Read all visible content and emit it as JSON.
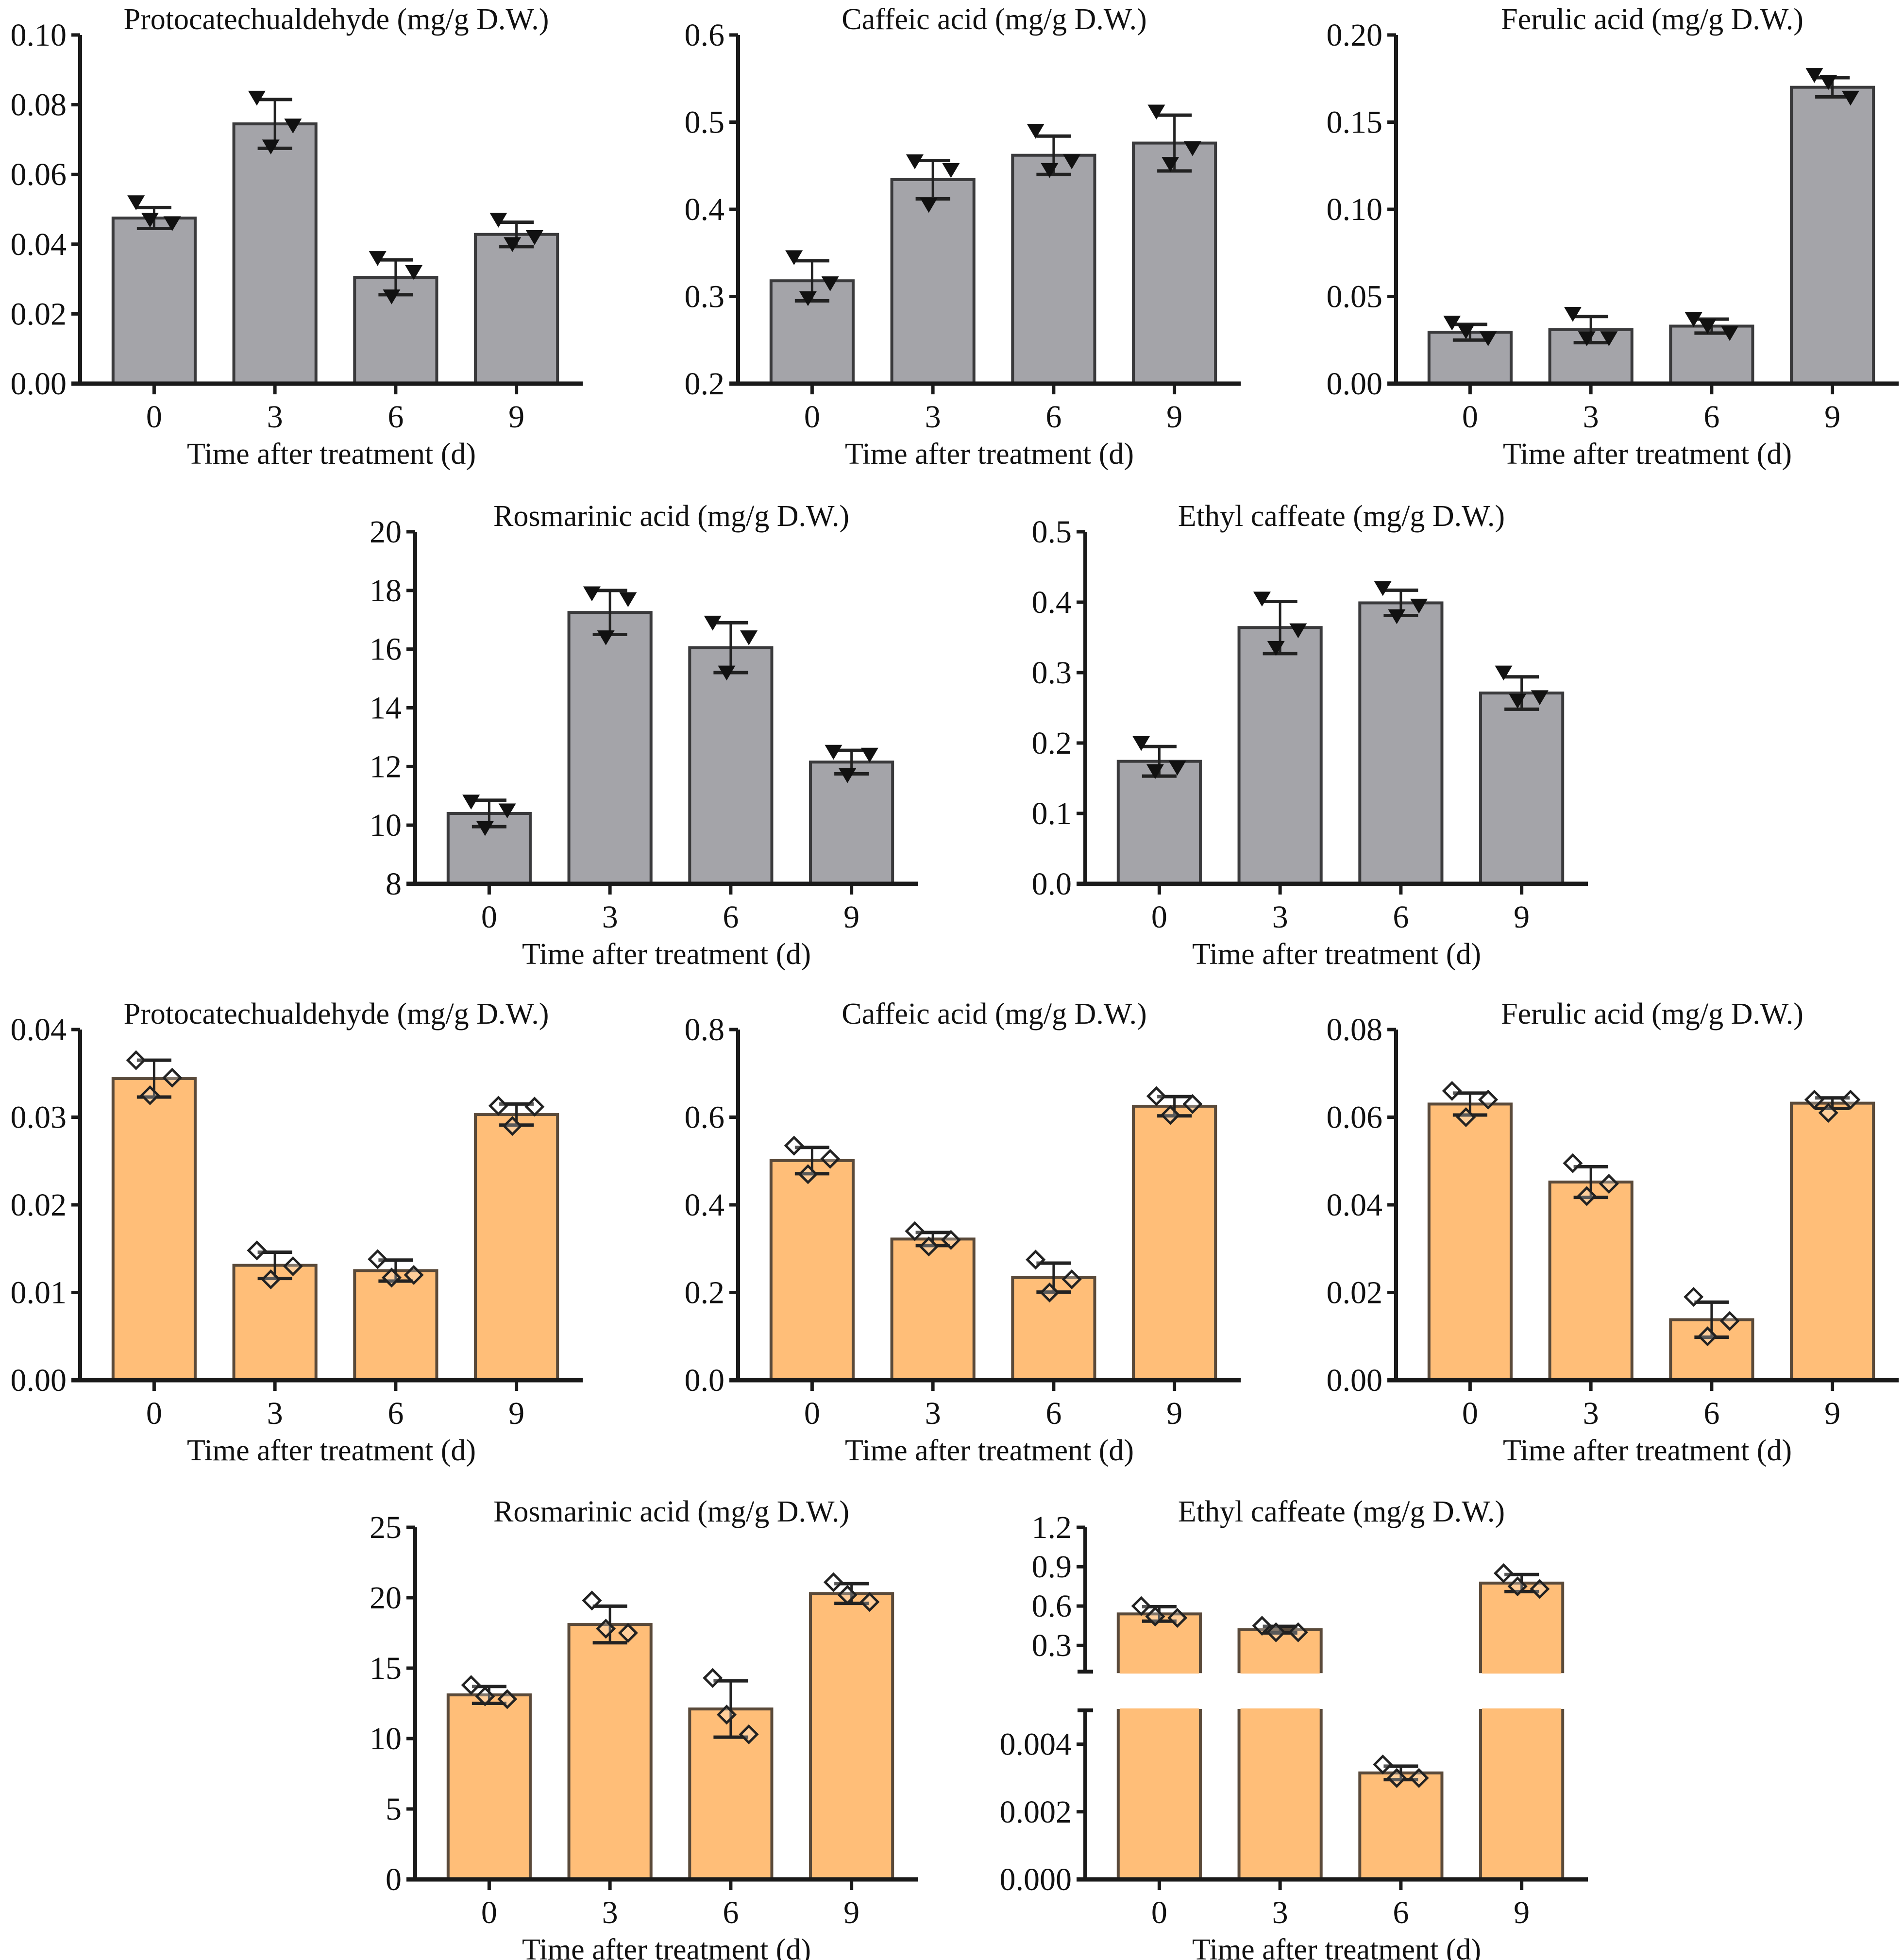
{
  "figure": {
    "colors": {
      "group_a_fill": "#a4a4a9",
      "group_a_edge": "#3a3a3c",
      "group_b_fill": "#ffbe78",
      "group_b_edge": "#5a4a3a",
      "axis": "#1a1a1a",
      "marker_a": "#111111",
      "marker_b_edge": "#222222"
    }
  },
  "chart_data": [
    {
      "type": "bar",
      "group": "A",
      "marker": "filled-down-triangle",
      "title": "Protocatechualdehyde (mg/g D.W.)",
      "xlabel": "Time after treatment (d)",
      "ylabel": "",
      "categories": [
        "0",
        "3",
        "6",
        "9"
      ],
      "values": [
        0.0475,
        0.0745,
        0.0305,
        0.0428
      ],
      "error": [
        0.003,
        0.007,
        0.005,
        0.0035
      ],
      "points": [
        [
          0.052,
          0.046,
          0.047
        ],
        [
          0.082,
          0.074,
          0.068
        ],
        [
          0.036,
          0.032,
          0.025
        ],
        [
          0.047,
          0.042,
          0.04
        ]
      ],
      "ylim": [
        0,
        0.1
      ],
      "yticks": [
        "0.00",
        "0.02",
        "0.04",
        "0.06",
        "0.08",
        "0.10"
      ],
      "ytick_values": [
        0,
        0.02,
        0.04,
        0.06,
        0.08,
        0.1
      ],
      "grid": false
    },
    {
      "type": "bar",
      "group": "A",
      "marker": "filled-down-triangle",
      "title": "Caffeic acid (mg/g D.W.)",
      "xlabel": "Time after treatment (d)",
      "ylabel": "",
      "categories": [
        "0",
        "3",
        "6",
        "9"
      ],
      "values": [
        0.318,
        0.434,
        0.462,
        0.476
      ],
      "error": [
        0.023,
        0.022,
        0.022,
        0.032
      ],
      "points": [
        [
          0.345,
          0.315,
          0.298
        ],
        [
          0.455,
          0.445,
          0.405
        ],
        [
          0.49,
          0.455,
          0.445
        ],
        [
          0.512,
          0.47,
          0.452
        ]
      ],
      "ylim": [
        0.2,
        0.6
      ],
      "yticks": [
        "0.2",
        "0.3",
        "0.4",
        "0.5",
        "0.6"
      ],
      "ytick_values": [
        0.2,
        0.3,
        0.4,
        0.5,
        0.6
      ],
      "grid": false
    },
    {
      "type": "bar",
      "group": "A",
      "marker": "filled-down-triangle",
      "title": "Ferulic acid (mg/g D.W.)",
      "xlabel": "Time after treatment (d)",
      "ylabel": "",
      "categories": [
        "0",
        "3",
        "6",
        "9"
      ],
      "values": [
        0.0295,
        0.031,
        0.033,
        0.17
      ],
      "error": [
        0.0045,
        0.0075,
        0.004,
        0.0055
      ],
      "points": [
        [
          0.035,
          0.026,
          0.03
        ],
        [
          0.04,
          0.026,
          0.026
        ],
        [
          0.037,
          0.029,
          0.033
        ],
        [
          0.177,
          0.164,
          0.173
        ]
      ],
      "ylim": [
        0,
        0.2
      ],
      "yticks": [
        "0.00",
        "0.05",
        "0.10",
        "0.15",
        "0.20"
      ],
      "ytick_values": [
        0,
        0.05,
        0.1,
        0.15,
        0.2
      ],
      "grid": false
    },
    {
      "type": "bar",
      "group": "A",
      "marker": "filled-down-triangle",
      "title": "Rosmarinic acid (mg/g D.W.)",
      "xlabel": "Time after treatment (d)",
      "ylabel": "",
      "categories": [
        "0",
        "3",
        "6",
        "9"
      ],
      "values": [
        10.4,
        17.25,
        16.05,
        12.15
      ],
      "error": [
        0.45,
        0.75,
        0.85,
        0.4
      ],
      "points": [
        [
          10.8,
          10.5,
          9.9
        ],
        [
          17.9,
          17.7,
          16.4
        ],
        [
          16.9,
          16.4,
          15.2
        ],
        [
          12.5,
          12.4,
          11.7
        ]
      ],
      "ylim": [
        8,
        20
      ],
      "yticks": [
        "8",
        "10",
        "12",
        "14",
        "16",
        "18",
        "20"
      ],
      "ytick_values": [
        8,
        10,
        12,
        14,
        16,
        18,
        20
      ],
      "grid": false
    },
    {
      "type": "bar",
      "group": "A",
      "marker": "filled-down-triangle",
      "title": "Ethyl caffeate (mg/g D.W.)",
      "xlabel": "Time after treatment (d)",
      "ylabel": "",
      "categories": [
        "0",
        "3",
        "6",
        "9"
      ],
      "values": [
        0.174,
        0.364,
        0.399,
        0.271
      ],
      "error": [
        0.021,
        0.037,
        0.018,
        0.023
      ],
      "points": [
        [
          0.2,
          0.165,
          0.16
        ],
        [
          0.405,
          0.36,
          0.335
        ],
        [
          0.42,
          0.395,
          0.38
        ],
        [
          0.3,
          0.265,
          0.26
        ]
      ],
      "ylim": [
        0,
        0.5
      ],
      "yticks": [
        "0.0",
        "0.1",
        "0.2",
        "0.3",
        "0.4",
        "0.5"
      ],
      "ytick_values": [
        0,
        0.1,
        0.2,
        0.3,
        0.4,
        0.5
      ],
      "grid": false
    },
    {
      "type": "bar",
      "group": "B",
      "marker": "open-diamond",
      "title": "Protocatechualdehyde (mg/g D.W.)",
      "xlabel": "Time after treatment (d)",
      "ylabel": "",
      "categories": [
        "0",
        "3",
        "6",
        "9"
      ],
      "values": [
        0.0344,
        0.0131,
        0.0125,
        0.0303
      ],
      "error": [
        0.0021,
        0.0015,
        0.0012,
        0.0012
      ],
      "points": [
        [
          0.0365,
          0.0345,
          0.0325
        ],
        [
          0.0148,
          0.013,
          0.0115
        ],
        [
          0.0138,
          0.012,
          0.0117
        ],
        [
          0.0313,
          0.0312,
          0.029
        ]
      ],
      "ylim": [
        0,
        0.04
      ],
      "yticks": [
        "0.00",
        "0.01",
        "0.02",
        "0.03",
        "0.04"
      ],
      "ytick_values": [
        0,
        0.01,
        0.02,
        0.03,
        0.04
      ],
      "grid": false
    },
    {
      "type": "bar",
      "group": "B",
      "marker": "open-diamond",
      "title": "Caffeic acid (mg/g D.W.)",
      "xlabel": "Time after treatment (d)",
      "ylabel": "",
      "categories": [
        "0",
        "3",
        "6",
        "9"
      ],
      "values": [
        0.501,
        0.322,
        0.234,
        0.625
      ],
      "error": [
        0.03,
        0.015,
        0.033,
        0.022
      ],
      "points": [
        [
          0.535,
          0.505,
          0.47
        ],
        [
          0.34,
          0.32,
          0.305
        ],
        [
          0.275,
          0.23,
          0.2
        ],
        [
          0.648,
          0.63,
          0.605
        ]
      ],
      "ylim": [
        0,
        0.8
      ],
      "yticks": [
        "0.0",
        "0.2",
        "0.4",
        "0.6",
        "0.8"
      ],
      "ytick_values": [
        0,
        0.2,
        0.4,
        0.6,
        0.8
      ],
      "grid": false
    },
    {
      "type": "bar",
      "group": "B",
      "marker": "open-diamond",
      "title": "Ferulic acid (mg/g D.W.)",
      "xlabel": "Time after treatment (d)",
      "ylabel": "",
      "categories": [
        "0",
        "3",
        "6",
        "9"
      ],
      "values": [
        0.063,
        0.0452,
        0.0138,
        0.0632
      ],
      "error": [
        0.0025,
        0.0035,
        0.004,
        0.0012
      ],
      "points": [
        [
          0.066,
          0.064,
          0.06
        ],
        [
          0.0495,
          0.0448,
          0.042
        ],
        [
          0.019,
          0.0135,
          0.01
        ],
        [
          0.064,
          0.064,
          0.061
        ]
      ],
      "ylim": [
        0,
        0.08
      ],
      "yticks": [
        "0.00",
        "0.02",
        "0.04",
        "0.06",
        "0.08"
      ],
      "ytick_values": [
        0,
        0.02,
        0.04,
        0.06,
        0.08
      ],
      "grid": false
    },
    {
      "type": "bar",
      "group": "B",
      "marker": "open-diamond",
      "title": "Rosmarinic acid (mg/g D.W.)",
      "xlabel": "Time after treatment (d)",
      "ylabel": "",
      "categories": [
        "0",
        "3",
        "6",
        "9"
      ],
      "values": [
        13.1,
        18.1,
        12.1,
        20.3
      ],
      "error": [
        0.6,
        1.3,
        2.0,
        0.7
      ],
      "points": [
        [
          13.8,
          12.8,
          13.0
        ],
        [
          19.8,
          17.5,
          17.8
        ],
        [
          14.3,
          10.3,
          11.7
        ],
        [
          21.1,
          19.7,
          20.2
        ]
      ],
      "ylim": [
        0,
        25
      ],
      "yticks": [
        "0",
        "5",
        "10",
        "15",
        "20",
        "25"
      ],
      "ytick_values": [
        0,
        5,
        10,
        15,
        20,
        25
      ],
      "grid": false
    },
    {
      "type": "bar",
      "group": "B",
      "marker": "open-diamond",
      "title": "Ethyl caffeate (mg/g D.W.)",
      "xlabel": "Time after treatment (d)",
      "ylabel": "",
      "categories": [
        "0",
        "3",
        "6",
        "9"
      ],
      "values": [
        0.54,
        0.42,
        0.00315,
        0.775
      ],
      "error": [
        0.055,
        0.025,
        0.0002,
        0.065
      ],
      "points": [
        [
          0.6,
          0.51,
          0.52
        ],
        [
          0.45,
          0.4,
          0.4
        ],
        [
          0.0034,
          0.003,
          0.003
        ],
        [
          0.85,
          0.73,
          0.75
        ]
      ],
      "broken_axis": {
        "upper_range": [
          0.1,
          1.2
        ],
        "upper_ticks": [
          "0.3",
          "0.6",
          "0.9",
          "1.2"
        ],
        "upper_tick_values": [
          0.3,
          0.6,
          0.9,
          1.2
        ],
        "lower_range": [
          0,
          0.005
        ],
        "lower_ticks": [
          "0.000",
          "0.002",
          "0.004"
        ],
        "lower_tick_values": [
          0,
          0.002,
          0.004
        ]
      },
      "grid": false
    }
  ]
}
